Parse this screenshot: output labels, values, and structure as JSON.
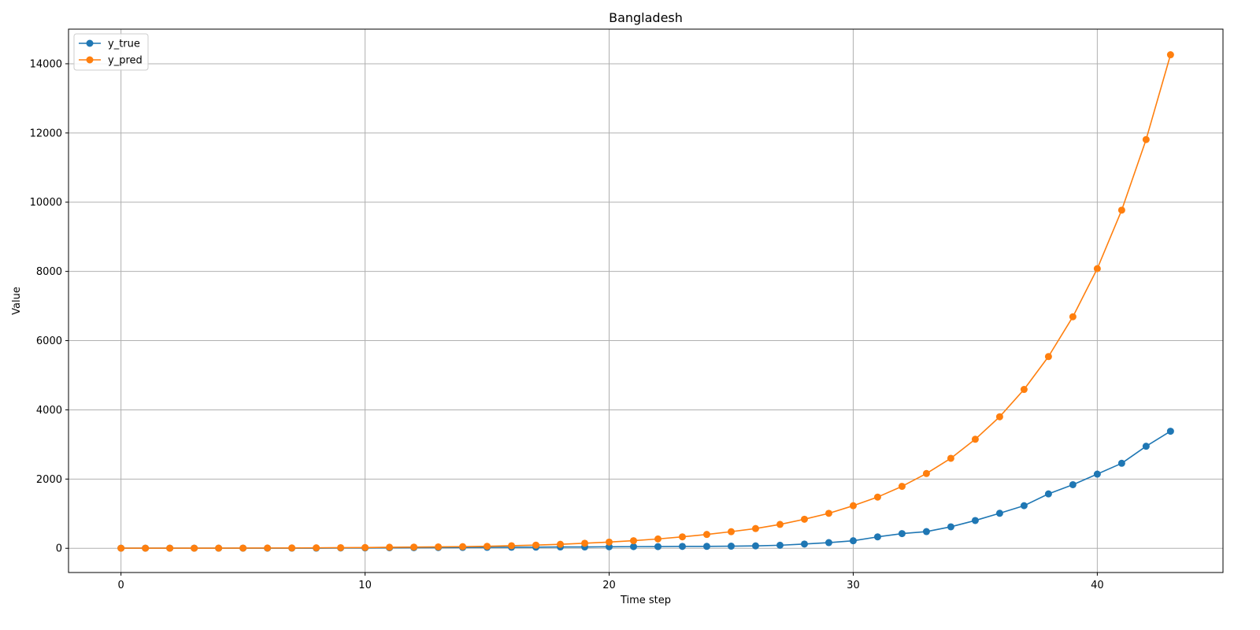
{
  "chart_data": {
    "type": "line",
    "title": "Bangladesh",
    "xlabel": "Time step",
    "ylabel": "Value",
    "xlim": [
      -2.15,
      45.15
    ],
    "ylim": [
      -700,
      15000
    ],
    "xticks": [
      0,
      10,
      20,
      30,
      40
    ],
    "yticks": [
      0,
      2000,
      4000,
      6000,
      8000,
      10000,
      12000,
      14000
    ],
    "grid": true,
    "legend_position": "top-left",
    "x": [
      0,
      1,
      2,
      3,
      4,
      5,
      6,
      7,
      8,
      9,
      10,
      11,
      12,
      13,
      14,
      15,
      16,
      17,
      18,
      19,
      20,
      21,
      22,
      23,
      24,
      25,
      26,
      27,
      28,
      29,
      30,
      31,
      32,
      33,
      34,
      35,
      36,
      37,
      38,
      39,
      40,
      41,
      42,
      43
    ],
    "series": [
      {
        "name": "y_true",
        "color": "#1f77b4",
        "values": [
          3,
          3,
          3,
          3,
          3,
          3,
          3,
          5,
          5,
          8,
          10,
          14,
          17,
          20,
          25,
          27,
          30,
          33,
          39,
          39,
          44,
          48,
          49,
          54,
          56,
          61,
          70,
          88,
          123,
          164,
          218,
          330,
          424,
          482,
          621,
          803,
          1012,
          1231,
          1572,
          1838,
          2144,
          2456,
          2948,
          3382
        ]
      },
      {
        "name": "y_pred",
        "color": "#ff7f0e",
        "values": [
          3,
          3,
          3,
          3,
          5,
          6,
          8,
          10,
          14,
          18,
          22,
          30,
          35,
          40,
          48,
          58,
          75,
          92,
          115,
          145,
          180,
          220,
          270,
          330,
          400,
          480,
          570,
          690,
          840,
          1010,
          1230,
          1480,
          1790,
          2160,
          2600,
          3150,
          3800,
          4590,
          5540,
          6690,
          8080,
          9770,
          11810,
          14260
        ]
      }
    ]
  }
}
